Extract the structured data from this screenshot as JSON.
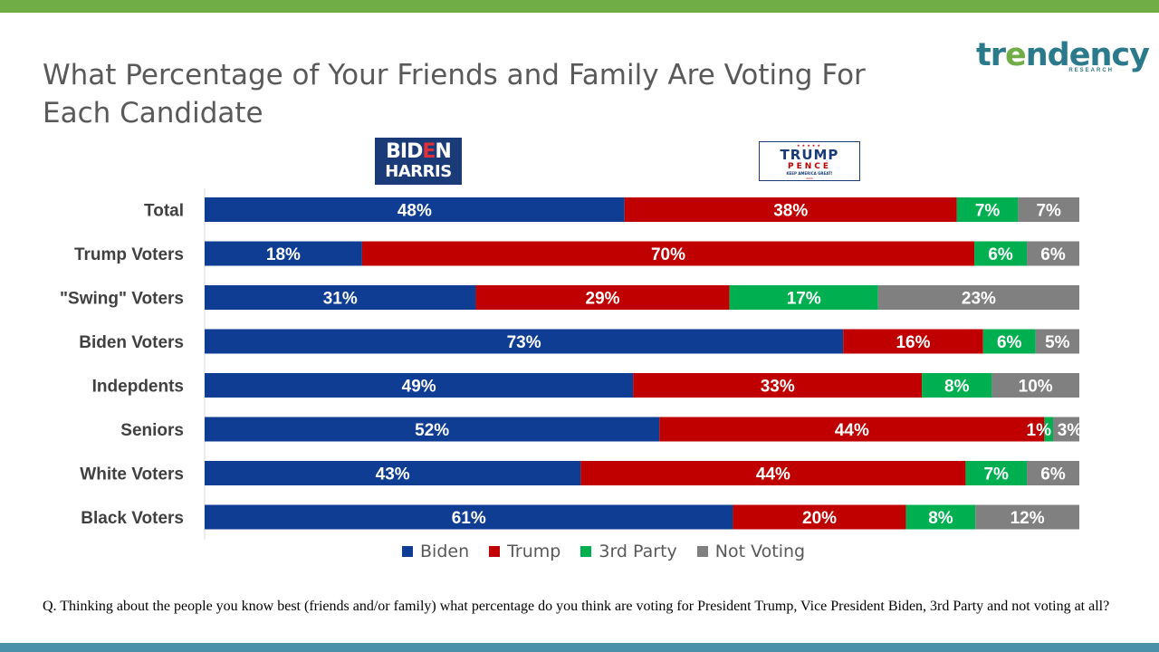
{
  "title": "What Percentage of Your Friends and Family Are Voting For Each Candidate",
  "brand": {
    "name_prefix": "tr",
    "name_sun": "e",
    "name_suffix": "ndency",
    "tagline": "RESEARCH",
    "color": "#2b7a8c",
    "accent": "#70ad47"
  },
  "logos": {
    "biden": {
      "line1_a": "BID",
      "line1_e": "E",
      "line1_b": "N",
      "line2": "HARRIS"
    },
    "trump": {
      "stars": "★★★★★",
      "line1": "TRUMP",
      "line2": "PENCE",
      "line3": "KEEP AMERICA GREAT!",
      "line4": "2020"
    }
  },
  "chart_data": {
    "type": "bar",
    "orientation": "horizontal",
    "stacked": true,
    "categories": [
      "Total",
      "Trump Voters",
      "\"Swing\" Voters",
      "Biden Voters",
      "Indepdents",
      "Seniors",
      "White Voters",
      "Black Voters"
    ],
    "series": [
      {
        "name": "Biden",
        "color": "#0e3d93",
        "values": [
          48,
          18,
          31,
          73,
          49,
          52,
          43,
          61
        ]
      },
      {
        "name": "Trump",
        "color": "#c00000",
        "values": [
          38,
          70,
          29,
          16,
          33,
          44,
          44,
          20
        ]
      },
      {
        "name": "3rd Party",
        "color": "#00b050",
        "values": [
          7,
          6,
          17,
          6,
          8,
          1,
          7,
          8
        ]
      },
      {
        "name": "Not Voting",
        "color": "#808080",
        "values": [
          7,
          6,
          23,
          5,
          10,
          3,
          6,
          12
        ]
      }
    ],
    "value_suffix": "%",
    "legend_position": "bottom",
    "grid": false
  },
  "footnote": "Q. Thinking  about the people you know best (friends and/or family)  what percentage do you think are voting for President Trump, Vice President Biden, 3rd Party and not voting at all?"
}
